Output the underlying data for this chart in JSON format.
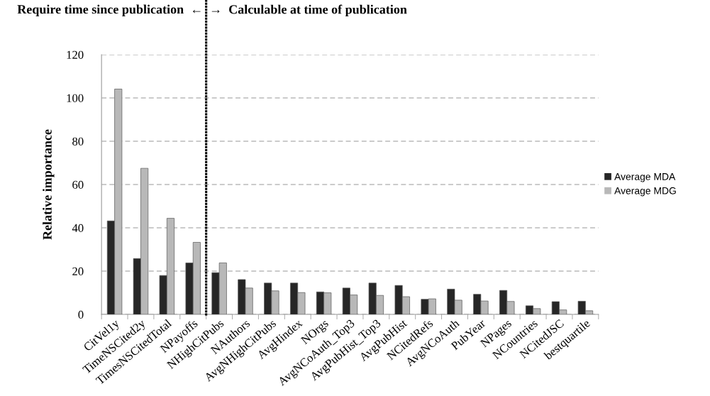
{
  "chart_data": {
    "type": "bar",
    "ylabel": "Relative importance",
    "categories": [
      "CitVel1y",
      "TimeNSCited2y",
      "TimesNSCitedTotal",
      "NPayoffs",
      "NHighCitPubs",
      "NAuthors",
      "AvgNHighCitPubs",
      "AvgHindex",
      "NOrgs",
      "AvgNCoAuth_Top3",
      "AvgPubHist_Top3",
      "AvgPubHist",
      "NCitedRefs",
      "AvgNCoAuth",
      "PubYear",
      "NPages",
      "NCountries",
      "NCitedJSC",
      "bestquartile"
    ],
    "series": [
      {
        "name": "Average MDA",
        "color": "#262626",
        "values": [
          43.2,
          25.8,
          18.0,
          23.8,
          19.3,
          16.1,
          14.5,
          14.5,
          10.4,
          12.2,
          14.5,
          13.4,
          7.0,
          11.7,
          9.3,
          11.1,
          4.0,
          5.9,
          6.1
        ]
      },
      {
        "name": "Average MDG",
        "color": "#b8b8b8",
        "values": [
          104.1,
          67.5,
          44.4,
          33.3,
          23.8,
          12.2,
          10.9,
          10.1,
          10.0,
          9.0,
          8.8,
          8.2,
          7.2,
          6.6,
          6.2,
          6.0,
          2.7,
          2.1,
          1.7
        ]
      }
    ],
    "ylim": [
      0,
      120
    ],
    "yticks": [
      0,
      20,
      40,
      60,
      80,
      100,
      120
    ],
    "grid": "y",
    "legend": "right",
    "annotations": [
      "Require time since publication  ←",
      "→  Calculable at time of publication"
    ]
  }
}
